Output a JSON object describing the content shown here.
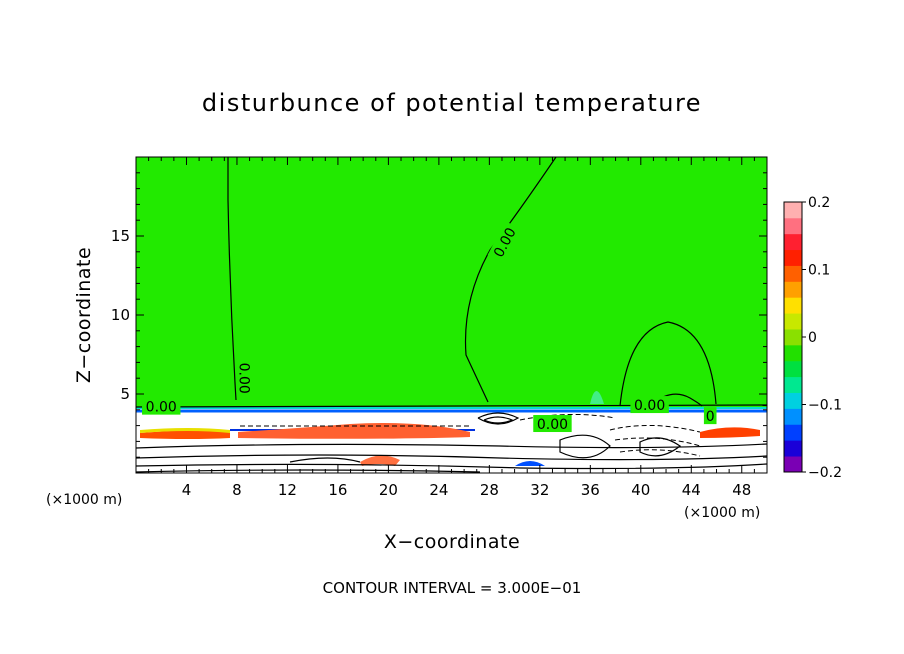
{
  "chart_data": {
    "type": "heatmap",
    "title": "disturbunce of potential temperature",
    "xlabel": "X−coordinate",
    "ylabel": "Z−coordinate",
    "x_unit_left": "(×1000 m)",
    "x_unit_right": "(×1000 m)",
    "xlim": [
      0,
      50
    ],
    "ylim": [
      0,
      20
    ],
    "x_ticks": [
      4,
      8,
      12,
      16,
      20,
      24,
      28,
      32,
      36,
      40,
      44,
      48
    ],
    "y_ticks": [
      5,
      10,
      15
    ],
    "footer": "CONTOUR INTERVAL = 3.000E−01",
    "colorbar": {
      "range": [
        -0.2,
        0.2
      ],
      "tick_values": [
        0.2,
        0.1,
        0,
        -0.1,
        -0.2
      ],
      "tick_labels": [
        "0.2",
        "0.1",
        "0",
        "−0.1",
        "−0.2"
      ],
      "colors": [
        "#7a00b4",
        "#1a00d8",
        "#0040ff",
        "#0090ff",
        "#00d0e0",
        "#00e890",
        "#00e040",
        "#22e000",
        "#8ae000",
        "#c8e800",
        "#ffe000",
        "#ffa000",
        "#ff6000",
        "#ff2000",
        "#ff2030",
        "#ff7080",
        "#ffb0b0"
      ]
    },
    "contour_labels": [
      {
        "text": "0.00",
        "x": 2.0,
        "z": 4.2
      },
      {
        "text": "0.00",
        "x": 8.6,
        "z": 6.0,
        "rotate": 90
      },
      {
        "text": "0.00",
        "x": 29.2,
        "z": 14.6,
        "rotate": -62
      },
      {
        "text": "0.00",
        "x": 33.0,
        "z": 3.1
      },
      {
        "text": "0.00",
        "x": 40.7,
        "z": 4.3
      },
      {
        "text": "0",
        "x": 45.5,
        "z": 3.6
      }
    ],
    "background_value": 0.02,
    "boundary_layer_top_z": 4.0
  }
}
